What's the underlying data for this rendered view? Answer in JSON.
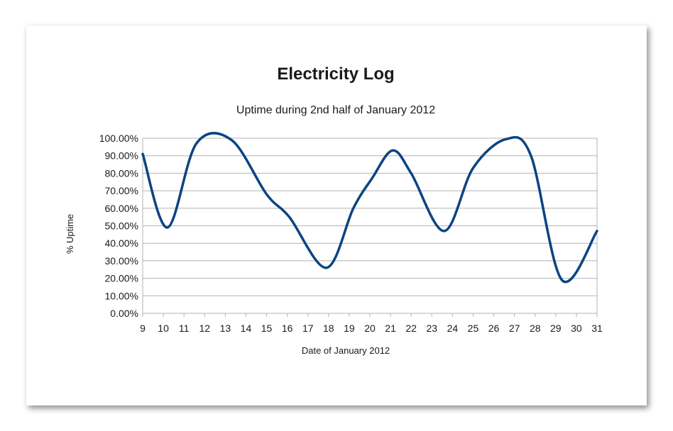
{
  "chart_data": {
    "type": "line",
    "title": "Electricity Log",
    "subtitle": "Uptime during 2nd half of January 2012",
    "xlabel": "Date of January 2012",
    "ylabel": "% Uptime",
    "x_ticks": [
      9,
      10,
      11,
      12,
      13,
      14,
      15,
      16,
      17,
      18,
      19,
      20,
      21,
      22,
      23,
      24,
      25,
      26,
      27,
      28,
      29,
      30,
      31
    ],
    "xlim": [
      9,
      31
    ],
    "ylim": [
      0,
      100
    ],
    "y_ticks": [
      "0.00%",
      "10.00%",
      "20.00%",
      "30.00%",
      "40.00%",
      "50.00%",
      "60.00%",
      "70.00%",
      "80.00%",
      "90.00%",
      "100.00%"
    ],
    "y_tick_values": [
      0,
      10,
      20,
      30,
      40,
      50,
      60,
      70,
      80,
      90,
      100
    ],
    "grid": true,
    "legend": "none",
    "series_color": "#0b4482",
    "series": [
      {
        "x": [
          9,
          10.2,
          11.6,
          13.3,
          15,
          16.1,
          17.9,
          19.2,
          20.1,
          21.1,
          22,
          23.6,
          25,
          26.6,
          27.8,
          29.3,
          31
        ],
        "values": [
          91,
          49,
          97,
          99,
          68,
          55,
          26,
          60,
          77,
          93,
          80,
          47,
          83,
          99.5,
          90,
          19,
          47
        ]
      }
    ]
  }
}
